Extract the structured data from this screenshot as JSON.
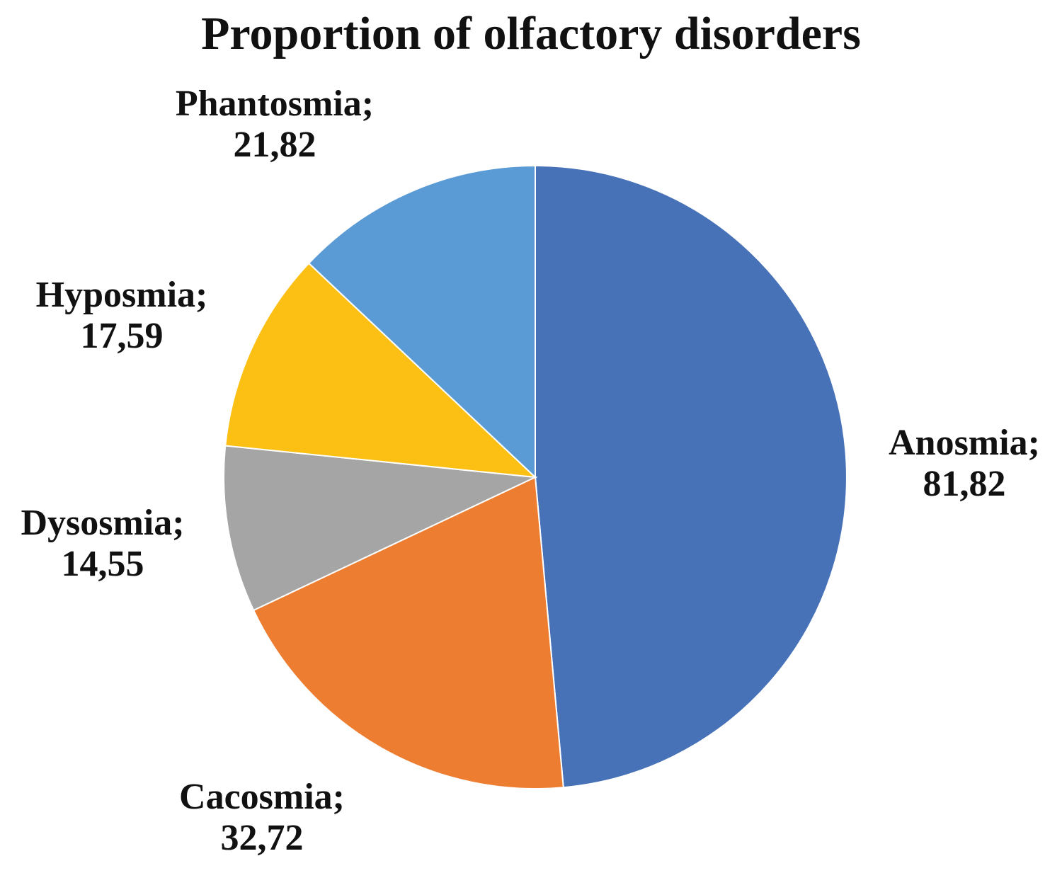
{
  "chart_data": {
    "type": "pie",
    "title": "Proportion of olfactory disorders",
    "slices": [
      {
        "label": "Anosmia",
        "value": 81.82,
        "display": "81,82",
        "color": "#4872b8"
      },
      {
        "label": "Cacosmia",
        "value": 32.72,
        "display": "32,72",
        "color": "#ed7d31"
      },
      {
        "label": "Dysosmia",
        "value": 14.55,
        "display": "14,55",
        "color": "#a5a5a5"
      },
      {
        "label": "Hyposmia",
        "value": 17.59,
        "display": "17,59",
        "color": "#fcbf14"
      },
      {
        "label": "Phantosmia",
        "value": 21.82,
        "display": "21,82",
        "color": "#5b9bd5"
      }
    ],
    "label_separator": ";",
    "legend": "none"
  }
}
